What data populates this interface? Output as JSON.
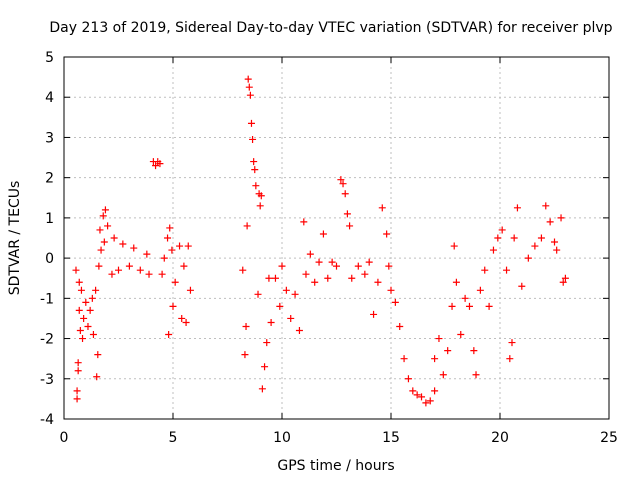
{
  "chart_data": {
    "type": "scatter",
    "title": "Day 213 of 2019, Sidereal Day-to-day VTEC variation (SDTVAR) for receiver plvp",
    "xlabel": "GPS time / hours",
    "ylabel": "SDTVAR / TECUs",
    "xlim": [
      0,
      25
    ],
    "ylim": [
      -4,
      5
    ],
    "xticks": [
      "0",
      "5",
      "10",
      "15",
      "20",
      "25"
    ],
    "yticks": [
      "-4",
      "-3",
      "-2",
      "-1",
      "0",
      "1",
      "2",
      "3",
      "4",
      "5"
    ],
    "grid": true,
    "marker": "+",
    "series": [
      {
        "name": "SDTVAR",
        "color": "#ff0000",
        "points": [
          [
            0.55,
            -0.3
          ],
          [
            0.6,
            -3.5
          ],
          [
            0.6,
            -3.3
          ],
          [
            0.65,
            -2.8
          ],
          [
            0.65,
            -2.6
          ],
          [
            0.7,
            -0.6
          ],
          [
            0.7,
            -1.3
          ],
          [
            0.75,
            -1.8
          ],
          [
            0.8,
            -0.8
          ],
          [
            0.85,
            -2.0
          ],
          [
            0.9,
            -1.5
          ],
          [
            1.0,
            -1.1
          ],
          [
            1.1,
            -1.7
          ],
          [
            1.2,
            -1.3
          ],
          [
            1.3,
            -1.0
          ],
          [
            1.35,
            -1.9
          ],
          [
            1.45,
            -0.8
          ],
          [
            1.5,
            -2.95
          ],
          [
            1.55,
            -2.4
          ],
          [
            1.6,
            -0.2
          ],
          [
            1.65,
            0.7
          ],
          [
            1.7,
            0.2
          ],
          [
            1.8,
            1.05
          ],
          [
            1.85,
            0.4
          ],
          [
            1.9,
            1.2
          ],
          [
            2.0,
            0.8
          ],
          [
            2.2,
            -0.4
          ],
          [
            2.3,
            0.5
          ],
          [
            2.5,
            -0.3
          ],
          [
            2.7,
            0.35
          ],
          [
            3.0,
            -0.2
          ],
          [
            3.2,
            0.25
          ],
          [
            3.5,
            -0.3
          ],
          [
            3.8,
            0.1
          ],
          [
            3.9,
            -0.4
          ],
          [
            4.1,
            2.4
          ],
          [
            4.2,
            2.3
          ],
          [
            4.3,
            2.4
          ],
          [
            4.4,
            2.35
          ],
          [
            4.5,
            -0.4
          ],
          [
            4.6,
            0.0
          ],
          [
            4.75,
            0.5
          ],
          [
            4.8,
            -1.9
          ],
          [
            4.85,
            0.75
          ],
          [
            4.95,
            0.2
          ],
          [
            5.0,
            -1.2
          ],
          [
            5.1,
            -0.6
          ],
          [
            5.3,
            0.3
          ],
          [
            5.4,
            -1.5
          ],
          [
            5.5,
            -0.2
          ],
          [
            5.6,
            -1.6
          ],
          [
            5.7,
            0.3
          ],
          [
            5.8,
            -0.8
          ],
          [
            8.2,
            -0.3
          ],
          [
            8.3,
            -2.4
          ],
          [
            8.35,
            -1.7
          ],
          [
            8.4,
            0.8
          ],
          [
            8.45,
            4.45
          ],
          [
            8.5,
            4.25
          ],
          [
            8.55,
            4.05
          ],
          [
            8.6,
            3.35
          ],
          [
            8.65,
            2.95
          ],
          [
            8.7,
            2.4
          ],
          [
            8.75,
            2.2
          ],
          [
            8.8,
            1.8
          ],
          [
            8.9,
            -0.9
          ],
          [
            8.95,
            1.6
          ],
          [
            9.0,
            1.3
          ],
          [
            9.05,
            1.55
          ],
          [
            9.1,
            -3.25
          ],
          [
            9.2,
            -2.7
          ],
          [
            9.3,
            -2.1
          ],
          [
            9.4,
            -0.5
          ],
          [
            9.5,
            -1.6
          ],
          [
            9.7,
            -0.5
          ],
          [
            9.9,
            -1.2
          ],
          [
            10.0,
            -0.2
          ],
          [
            10.2,
            -0.8
          ],
          [
            10.4,
            -1.5
          ],
          [
            10.6,
            -0.9
          ],
          [
            10.8,
            -1.8
          ],
          [
            11.0,
            0.9
          ],
          [
            11.1,
            -0.4
          ],
          [
            11.3,
            0.1
          ],
          [
            11.5,
            -0.6
          ],
          [
            11.7,
            -0.1
          ],
          [
            11.9,
            0.6
          ],
          [
            12.1,
            -0.5
          ],
          [
            12.3,
            -0.1
          ],
          [
            12.5,
            -0.2
          ],
          [
            12.7,
            1.95
          ],
          [
            12.8,
            1.85
          ],
          [
            12.9,
            1.6
          ],
          [
            13.0,
            1.1
          ],
          [
            13.1,
            0.8
          ],
          [
            13.2,
            -0.5
          ],
          [
            13.5,
            -0.2
          ],
          [
            13.8,
            -0.4
          ],
          [
            14.0,
            -0.1
          ],
          [
            14.2,
            -1.4
          ],
          [
            14.4,
            -0.6
          ],
          [
            14.6,
            1.25
          ],
          [
            14.8,
            0.6
          ],
          [
            14.9,
            -0.2
          ],
          [
            15.0,
            -0.8
          ],
          [
            15.2,
            -1.1
          ],
          [
            15.4,
            -1.7
          ],
          [
            15.6,
            -2.5
          ],
          [
            15.8,
            -3.0
          ],
          [
            16.0,
            -3.3
          ],
          [
            16.2,
            -3.4
          ],
          [
            16.4,
            -3.45
          ],
          [
            16.6,
            -3.6
          ],
          [
            16.8,
            -3.55
          ],
          [
            17.0,
            -3.3
          ],
          [
            17.0,
            -2.5
          ],
          [
            17.2,
            -2.0
          ],
          [
            17.4,
            -2.9
          ],
          [
            17.6,
            -2.3
          ],
          [
            17.8,
            -1.2
          ],
          [
            17.9,
            0.3
          ],
          [
            18.0,
            -0.6
          ],
          [
            18.2,
            -1.9
          ],
          [
            18.4,
            -1.0
          ],
          [
            18.6,
            -1.2
          ],
          [
            18.8,
            -2.3
          ],
          [
            18.9,
            -2.9
          ],
          [
            19.1,
            -0.8
          ],
          [
            19.3,
            -0.3
          ],
          [
            19.5,
            -1.2
          ],
          [
            19.7,
            0.2
          ],
          [
            19.9,
            0.5
          ],
          [
            20.1,
            0.7
          ],
          [
            20.3,
            -0.3
          ],
          [
            20.45,
            -2.5
          ],
          [
            20.55,
            -2.1
          ],
          [
            20.65,
            0.5
          ],
          [
            20.8,
            1.25
          ],
          [
            21.0,
            -0.7
          ],
          [
            21.3,
            0.0
          ],
          [
            21.6,
            0.3
          ],
          [
            21.9,
            0.5
          ],
          [
            22.1,
            1.3
          ],
          [
            22.3,
            0.9
          ],
          [
            22.5,
            0.4
          ],
          [
            22.6,
            0.2
          ],
          [
            22.8,
            1.0
          ],
          [
            22.9,
            -0.6
          ],
          [
            23.0,
            -0.5
          ]
        ]
      }
    ]
  }
}
